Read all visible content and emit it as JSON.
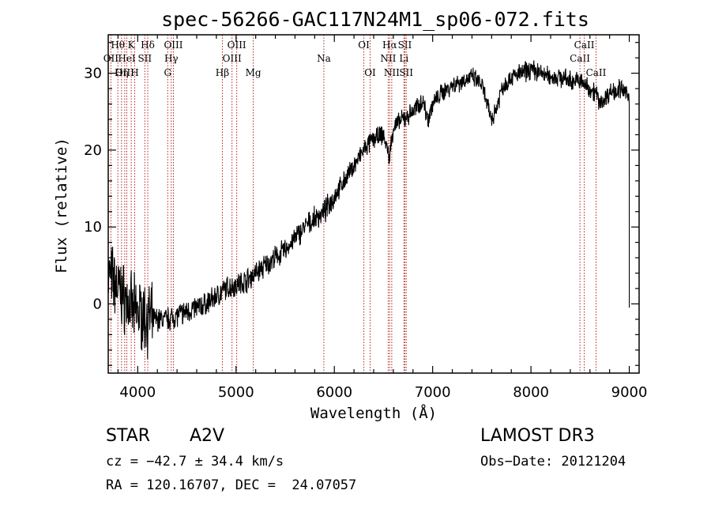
{
  "chart_data": {
    "type": "line",
    "title": "spec-56266-GAC117N24M1_sp06-072.fits",
    "xlabel": "Wavelength (Å)",
    "ylabel": "Flux (relative)",
    "xlim": [
      3700,
      9100
    ],
    "ylim": [
      -9,
      35
    ],
    "xticks": [
      4000,
      5000,
      6000,
      7000,
      8000,
      9000
    ],
    "yticks": [
      0,
      10,
      20,
      30
    ],
    "series": [
      {
        "name": "flux",
        "x": [
          3700,
          3750,
          3800,
          3850,
          3900,
          3950,
          4000,
          4050,
          4100,
          4200,
          4300,
          4400,
          4500,
          4600,
          4700,
          4800,
          4900,
          5000,
          5100,
          5200,
          5300,
          5400,
          5500,
          5600,
          5700,
          5800,
          5900,
          6000,
          6100,
          6200,
          6300,
          6400,
          6500,
          6560,
          6600,
          6650,
          6700,
          6800,
          6900,
          6950,
          7000,
          7100,
          7200,
          7300,
          7400,
          7500,
          7550,
          7600,
          7650,
          7700,
          7800,
          7900,
          8000,
          8100,
          8200,
          8300,
          8400,
          8500,
          8540,
          8600,
          8660,
          8700,
          8800,
          8900,
          9000
        ],
        "y": [
          4,
          3,
          2,
          1,
          0,
          -1,
          -1,
          -1.5,
          -2,
          -2,
          -2,
          -1.5,
          -1,
          -0.5,
          0,
          1,
          2,
          2.5,
          3,
          4,
          5,
          6,
          7,
          8.5,
          10,
          11,
          12,
          14,
          16,
          18,
          20,
          21.5,
          22,
          19,
          23,
          23.5,
          24,
          25,
          26.5,
          24,
          26,
          27.5,
          28.5,
          29,
          29.5,
          28.5,
          26,
          24,
          25.5,
          28,
          29.5,
          30,
          30.5,
          30,
          29.5,
          29.5,
          29,
          29,
          28.5,
          28,
          27.5,
          26,
          27.5,
          28,
          27
        ]
      }
    ],
    "spectral_lines": [
      {
        "label": "Hθ",
        "wavelength": 3798,
        "row": 1
      },
      {
        "label": "OII",
        "wavelength": 3727,
        "row": 2
      },
      {
        "label": "Hη",
        "wavelength": 3835,
        "row": 3
      },
      {
        "label": "OIII",
        "wavelength": 3868,
        "row": 3
      },
      {
        "label": "HeI",
        "wavelength": 3889,
        "row": 2
      },
      {
        "label": "K",
        "wavelength": 3934,
        "row": 1
      },
      {
        "label": "H",
        "wavelength": 3969,
        "row": 3
      },
      {
        "label": "SII",
        "wavelength": 4072,
        "row": 2
      },
      {
        "label": "Hδ",
        "wavelength": 4102,
        "row": 1
      },
      {
        "label": "Hγ",
        "wavelength": 4341,
        "row": 2
      },
      {
        "label": "G",
        "wavelength": 4305,
        "row": 3
      },
      {
        "label": "OIII",
        "wavelength": 4363,
        "row": 1
      },
      {
        "label": "Hβ",
        "wavelength": 4861,
        "row": 3
      },
      {
        "label": "OIII",
        "wavelength": 4959,
        "row": 2
      },
      {
        "label": "OIII",
        "wavelength": 5007,
        "row": 1
      },
      {
        "label": "Mg",
        "wavelength": 5175,
        "row": 3
      },
      {
        "label": "Na",
        "wavelength": 5893,
        "row": 2
      },
      {
        "label": "OI",
        "wavelength": 6300,
        "row": 1
      },
      {
        "label": "OI",
        "wavelength": 6364,
        "row": 3
      },
      {
        "label": "NII",
        "wavelength": 6548,
        "row": 2
      },
      {
        "label": "Hα",
        "wavelength": 6563,
        "row": 1
      },
      {
        "label": "NII",
        "wavelength": 6584,
        "row": 3
      },
      {
        "label": "Li",
        "wavelength": 6708,
        "row": 2
      },
      {
        "label": "SII",
        "wavelength": 6717,
        "row": 1
      },
      {
        "label": "SII",
        "wavelength": 6731,
        "row": 3
      },
      {
        "label": "CaII",
        "wavelength": 8498,
        "row": 2
      },
      {
        "label": "CaII",
        "wavelength": 8542,
        "row": 1
      },
      {
        "label": "CaII",
        "wavelength": 8662,
        "row": 3
      }
    ]
  },
  "info": {
    "class": "STAR",
    "subclass": "A2V",
    "survey": "LAMOST DR3",
    "cz": "cz = −42.7 ± 34.4 km/s",
    "obs_date": "Obs−Date: 20121204",
    "coords": "RA = 120.16707, DEC =  24.07057"
  },
  "colors": {
    "line_marker": "#b22222",
    "spectrum": "#000000"
  }
}
